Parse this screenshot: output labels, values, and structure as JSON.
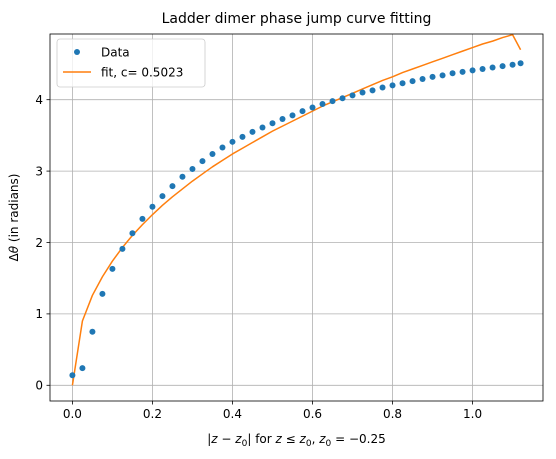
{
  "chart_data": {
    "type": "scatter",
    "title": "Ladder dimer phase jump curve fitting",
    "xlabel_parts": [
      "|",
      "z",
      " − ",
      "z",
      "0",
      "|",
      " for ",
      "z",
      " ≤ ",
      "z",
      "0",
      ", ",
      "z",
      "0",
      " = −0.25"
    ],
    "ylabel_parts": [
      "Δ",
      "θ",
      " (in radians)"
    ],
    "xlim": [
      -0.056,
      1.176
    ],
    "ylim": [
      -0.22,
      4.92
    ],
    "xticks": [
      0.0,
      0.2,
      0.4,
      0.6,
      0.8,
      1.0
    ],
    "xtick_labels": [
      "0.0",
      "0.2",
      "0.4",
      "0.6",
      "0.8",
      "1.0"
    ],
    "yticks": [
      0,
      1,
      2,
      3,
      4
    ],
    "ytick_labels": [
      "0",
      "1",
      "2",
      "3",
      "4"
    ],
    "grid": true,
    "legend_position": "top-left",
    "series": [
      {
        "name": "Data",
        "kind": "scatter",
        "color": "#1f77b4",
        "x": [
          0.0,
          0.025,
          0.05,
          0.075,
          0.1,
          0.125,
          0.15,
          0.175,
          0.2,
          0.225,
          0.25,
          0.275,
          0.3,
          0.325,
          0.35,
          0.375,
          0.4,
          0.425,
          0.45,
          0.475,
          0.5,
          0.525,
          0.55,
          0.575,
          0.6,
          0.625,
          0.65,
          0.675,
          0.7,
          0.725,
          0.75,
          0.775,
          0.8,
          0.825,
          0.85,
          0.875,
          0.9,
          0.925,
          0.95,
          0.975,
          1.0,
          1.025,
          1.05,
          1.075,
          1.1,
          1.12
        ],
        "y": [
          0.14,
          0.24,
          0.75,
          1.28,
          1.63,
          1.91,
          2.13,
          2.33,
          2.5,
          2.65,
          2.79,
          2.92,
          3.03,
          3.14,
          3.24,
          3.33,
          3.41,
          3.48,
          3.55,
          3.61,
          3.67,
          3.73,
          3.78,
          3.84,
          3.89,
          3.94,
          3.98,
          4.02,
          4.06,
          4.1,
          4.13,
          4.17,
          4.2,
          4.23,
          4.26,
          4.29,
          4.32,
          4.34,
          4.37,
          4.39,
          4.41,
          4.43,
          4.45,
          4.47,
          4.49,
          4.51
        ]
      },
      {
        "name": "fit, c= 0.5023",
        "kind": "line",
        "color": "#ff7f0e",
        "x": [
          0.0,
          0.025,
          0.05,
          0.075,
          0.1,
          0.125,
          0.15,
          0.175,
          0.2,
          0.225,
          0.25,
          0.275,
          0.3,
          0.325,
          0.35,
          0.375,
          0.4,
          0.425,
          0.45,
          0.475,
          0.5,
          0.525,
          0.55,
          0.575,
          0.6,
          0.625,
          0.65,
          0.675,
          0.7,
          0.725,
          0.75,
          0.775,
          0.8,
          0.825,
          0.85,
          0.875,
          0.9,
          0.925,
          0.95,
          0.975,
          1.0,
          1.025,
          1.05,
          1.075,
          1.1,
          1.12
        ],
        "y": [
          0.0,
          0.9,
          1.26,
          1.52,
          1.74,
          1.93,
          2.1,
          2.25,
          2.39,
          2.52,
          2.64,
          2.75,
          2.86,
          2.96,
          3.06,
          3.15,
          3.24,
          3.32,
          3.4,
          3.48,
          3.56,
          3.63,
          3.7,
          3.77,
          3.84,
          3.91,
          3.97,
          4.03,
          4.09,
          4.15,
          4.21,
          4.27,
          4.32,
          4.38,
          4.43,
          4.48,
          4.53,
          4.58,
          4.63,
          4.68,
          4.73,
          4.78,
          4.82,
          4.87,
          4.91,
          4.7
        ]
      }
    ]
  }
}
